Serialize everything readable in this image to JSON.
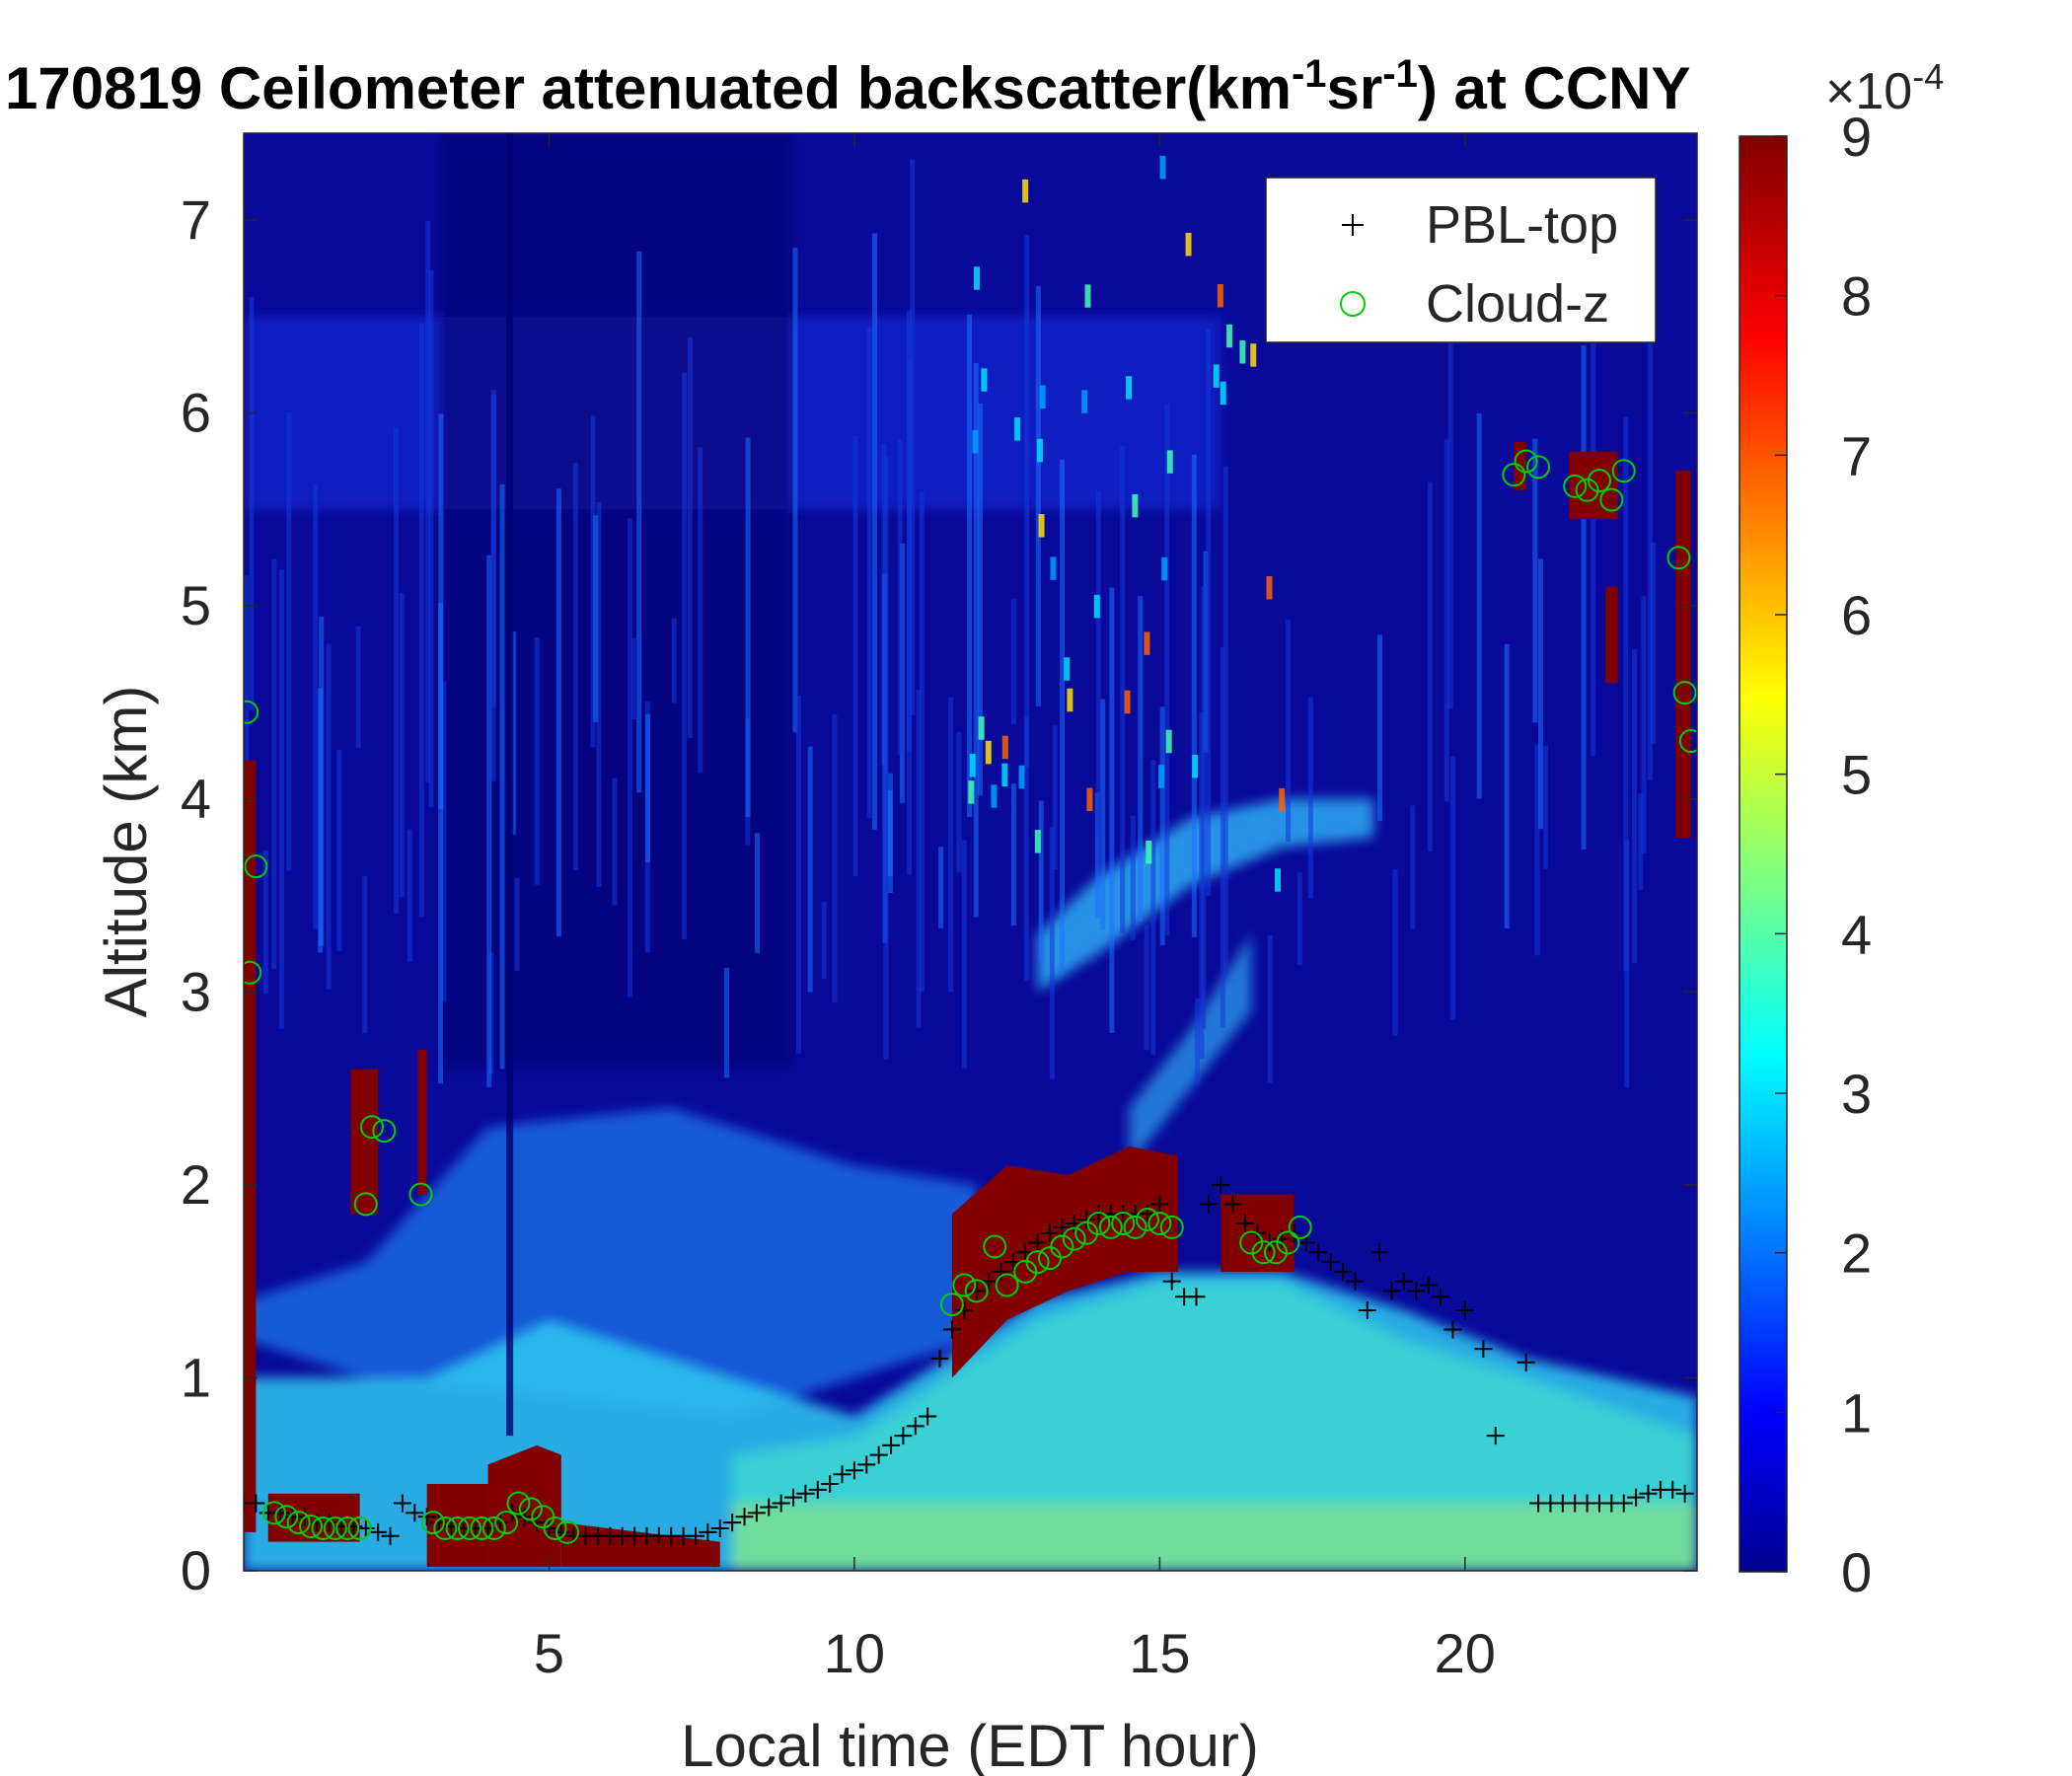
{
  "chart_data": {
    "type": "heatmap",
    "title_parts": {
      "prefix": "170819 Ceilometer attenuated backscatter(km",
      "sup1": "-1",
      "mid": "sr",
      "sup2": "-1",
      "suffix": ") at CCNY"
    },
    "xlabel": "Local time (EDT hour)",
    "ylabel": "Altitude (km)",
    "xlim": [
      0,
      23.8
    ],
    "ylim": [
      0,
      7.45
    ],
    "xticks": [
      "5",
      "10",
      "15",
      "20"
    ],
    "xtick_values": [
      5,
      10,
      15,
      20
    ],
    "yticks": [
      "0",
      "1",
      "2",
      "3",
      "4",
      "5",
      "6",
      "7"
    ],
    "ytick_values": [
      0,
      1,
      2,
      3,
      4,
      5,
      6,
      7
    ],
    "colorbar": {
      "colormap": "jet",
      "range": [
        0,
        9
      ],
      "ticks": [
        "0",
        "1",
        "2",
        "3",
        "4",
        "5",
        "6",
        "7",
        "8",
        "9"
      ],
      "tick_values": [
        0,
        1,
        2,
        3,
        4,
        5,
        6,
        7,
        8,
        9
      ],
      "exponent_base": "×10",
      "exponent": "-4"
    },
    "legend": {
      "position": "top-right",
      "entries": [
        {
          "label": "PBL-top",
          "marker": "+",
          "color": "#000000"
        },
        {
          "label": "Cloud-z",
          "marker": "o",
          "color": "#00d000"
        }
      ]
    },
    "series": [
      {
        "name": "PBL-top",
        "x": [
          0.0,
          0.2,
          0.4,
          0.6,
          0.8,
          1.0,
          1.2,
          1.4,
          1.6,
          1.8,
          2.0,
          2.2,
          2.4,
          2.6,
          2.8,
          3.0,
          3.2,
          3.4,
          3.6,
          3.8,
          4.0,
          4.2,
          4.4,
          4.6,
          4.8,
          5.0,
          5.2,
          5.4,
          5.6,
          5.8,
          6.0,
          6.2,
          6.4,
          6.6,
          6.8,
          7.0,
          7.2,
          7.4,
          7.6,
          7.8,
          8.0,
          8.2,
          8.4,
          8.6,
          8.8,
          9.0,
          9.2,
          9.4,
          9.6,
          9.8,
          10.0,
          10.2,
          10.4,
          10.6,
          10.8,
          11.0,
          11.2,
          11.4,
          11.6,
          11.8,
          12.0,
          12.2,
          12.4,
          12.6,
          12.8,
          13.0,
          13.2,
          13.4,
          13.6,
          13.8,
          14.0,
          14.2,
          14.4,
          14.6,
          14.8,
          15.0,
          15.2,
          15.4,
          15.6,
          15.8,
          16.0,
          16.2,
          16.4,
          16.6,
          16.8,
          17.0,
          17.2,
          17.4,
          17.6,
          17.8,
          18.0,
          18.2,
          18.4,
          18.6,
          18.8,
          19.0,
          19.2,
          19.4,
          19.6,
          19.8,
          20.0,
          20.3,
          20.5,
          21.0,
          21.2,
          21.4,
          21.6,
          21.8,
          22.0,
          22.2,
          22.4,
          22.6,
          22.8,
          23.0,
          23.2,
          23.4,
          23.6
        ],
        "y": [
          0.35,
          0.35,
          0.3,
          0.3,
          0.28,
          0.28,
          0.25,
          0.25,
          0.23,
          0.23,
          0.22,
          0.2,
          0.18,
          0.35,
          0.3,
          0.28,
          0.25,
          0.23,
          0.22,
          0.22,
          0.22,
          0.25,
          0.3,
          0.28,
          0.25,
          0.22,
          0.2,
          0.18,
          0.18,
          0.18,
          0.18,
          0.18,
          0.18,
          0.18,
          0.18,
          0.18,
          0.18,
          0.18,
          0.2,
          0.22,
          0.25,
          0.28,
          0.3,
          0.33,
          0.35,
          0.38,
          0.4,
          0.42,
          0.45,
          0.5,
          0.52,
          0.55,
          0.6,
          0.65,
          0.7,
          0.75,
          0.8,
          1.1,
          1.25,
          1.35,
          1.45,
          1.5,
          1.55,
          1.6,
          1.65,
          1.7,
          1.75,
          1.78,
          1.8,
          1.82,
          1.85,
          1.85,
          1.85,
          1.85,
          1.85,
          1.9,
          1.5,
          1.42,
          1.42,
          1.9,
          2.0,
          1.9,
          1.8,
          1.75,
          1.7,
          1.72,
          1.75,
          1.7,
          1.65,
          1.6,
          1.55,
          1.5,
          1.35,
          1.65,
          1.45,
          1.5,
          1.45,
          1.48,
          1.42,
          1.25,
          1.35,
          1.15,
          0.7,
          1.08,
          0.35,
          0.35,
          0.35,
          0.35,
          0.35,
          0.35,
          0.35,
          0.35,
          0.38,
          0.4,
          0.42,
          0.42,
          0.4
        ]
      },
      {
        "name": "Cloud-z",
        "x": [
          0.05,
          0.1,
          0.2,
          0.5,
          0.7,
          0.9,
          1.1,
          1.3,
          1.5,
          1.7,
          1.9,
          2.0,
          2.1,
          2.3,
          2.9,
          3.1,
          3.3,
          3.5,
          3.7,
          3.9,
          4.1,
          4.3,
          4.5,
          4.7,
          4.9,
          5.1,
          5.3,
          11.6,
          11.8,
          12.0,
          12.3,
          12.5,
          12.8,
          13.0,
          13.2,
          13.4,
          13.6,
          13.8,
          14.0,
          14.2,
          14.4,
          14.6,
          14.8,
          15.0,
          15.2,
          16.5,
          16.7,
          16.9,
          17.1,
          17.3,
          20.8,
          21.0,
          21.2,
          21.8,
          22.0,
          22.2,
          22.4,
          22.6,
          23.5,
          23.6,
          23.7
        ],
        "y": [
          4.45,
          3.1,
          3.65,
          0.3,
          0.28,
          0.25,
          0.23,
          0.22,
          0.22,
          0.22,
          0.22,
          1.9,
          2.3,
          2.28,
          1.95,
          0.25,
          0.22,
          0.22,
          0.22,
          0.22,
          0.22,
          0.25,
          0.35,
          0.32,
          0.28,
          0.22,
          0.2,
          1.38,
          1.48,
          1.45,
          1.68,
          1.48,
          1.55,
          1.6,
          1.62,
          1.68,
          1.72,
          1.75,
          1.8,
          1.78,
          1.8,
          1.78,
          1.82,
          1.8,
          1.78,
          1.7,
          1.65,
          1.65,
          1.7,
          1.78,
          5.68,
          5.75,
          5.72,
          5.62,
          5.6,
          5.65,
          5.55,
          5.7,
          5.25,
          4.55,
          4.3
        ]
      }
    ]
  }
}
